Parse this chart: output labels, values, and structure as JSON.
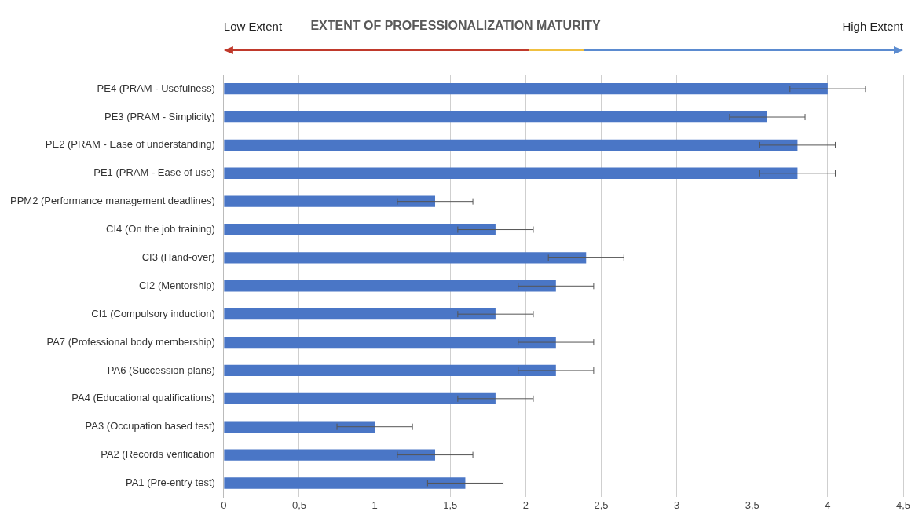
{
  "chart_data": {
    "type": "bar",
    "orientation": "horizontal",
    "title": "EXTENT OF PROFESSIONALIZATION MATURITY",
    "annotations": [
      "Low Extent",
      "High Extent"
    ],
    "categories": [
      "PE4 (PRAM - Usefulness)",
      "PE3 (PRAM - Simplicity)",
      "PE2 (PRAM - Ease of understanding)",
      "PE1 (PRAM - Ease of use)",
      "PPM2 (Performance management deadlines)",
      "CI4 (On the job training)",
      "CI3 (Hand-over)",
      "CI2 (Mentorship)",
      "CI1 (Compulsory induction)",
      "PA7 (Professional body membership)",
      "PA6 (Succession plans)",
      "PA4 (Educational qualifications)",
      "PA3 (Occupation based test)",
      "PA2 (Records verification",
      "PA1 (Pre-entry test)"
    ],
    "values": [
      4,
      3.6,
      3.8,
      3.8,
      1.4,
      1.8,
      2.4,
      2.2,
      1.8,
      2.2,
      2.2,
      1.8,
      1,
      1.4,
      1.6
    ],
    "errors": [
      0.25,
      0.25,
      0.25,
      0.25,
      0.25,
      0.25,
      0.25,
      0.25,
      0.25,
      0.25,
      0.25,
      0.25,
      0.25,
      0.25,
      0.25
    ],
    "color": "#4a76c6",
    "xlim": [
      0,
      4.5
    ],
    "xticks": [
      0,
      {
        "value": 0.5,
        "label": "0,5"
      },
      1,
      {
        "value": 1.5,
        "label": "1,5"
      },
      2,
      {
        "value": 2.5,
        "label": "2,5"
      },
      3,
      {
        "value": 3.5,
        "label": "3,5"
      },
      4,
      {
        "value": 4.5,
        "label": "4,5"
      }
    ],
    "grid": "x"
  }
}
